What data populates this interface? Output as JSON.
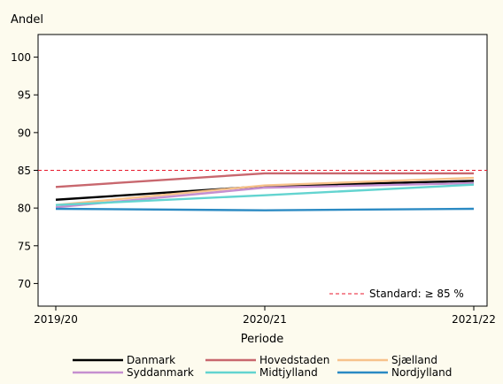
{
  "chart_data": {
    "type": "line",
    "title": "",
    "ylabel": "Andel",
    "xlabel": "Periode",
    "x": [
      "2019/20",
      "2020/21",
      "2021/22"
    ],
    "ylim": [
      67,
      103
    ],
    "yticks": [
      70,
      75,
      80,
      85,
      90,
      95,
      100
    ],
    "grid": false,
    "legend_position": "bottom",
    "series": [
      {
        "name": "Danmark",
        "color": "#000000",
        "values": [
          81.1,
          82.9,
          83.6
        ]
      },
      {
        "name": "Hovedstaden",
        "color": "#c8676e",
        "values": [
          82.8,
          84.6,
          84.6
        ]
      },
      {
        "name": "Sjælland",
        "color": "#f7c28b",
        "values": [
          80.4,
          83.0,
          84.0
        ]
      },
      {
        "name": "Syddanmark",
        "color": "#c58fd0",
        "values": [
          80.1,
          82.7,
          83.3
        ]
      },
      {
        "name": "Midtjylland",
        "color": "#63d4d0",
        "values": [
          80.4,
          81.7,
          83.1
        ]
      },
      {
        "name": "Nordjylland",
        "color": "#2b8ac3",
        "values": [
          79.9,
          79.7,
          79.9
        ]
      }
    ],
    "reference_line": {
      "label": "Standard: ≥ 85 %",
      "value": 85,
      "color": "#e8192c",
      "style": "dashed"
    }
  }
}
